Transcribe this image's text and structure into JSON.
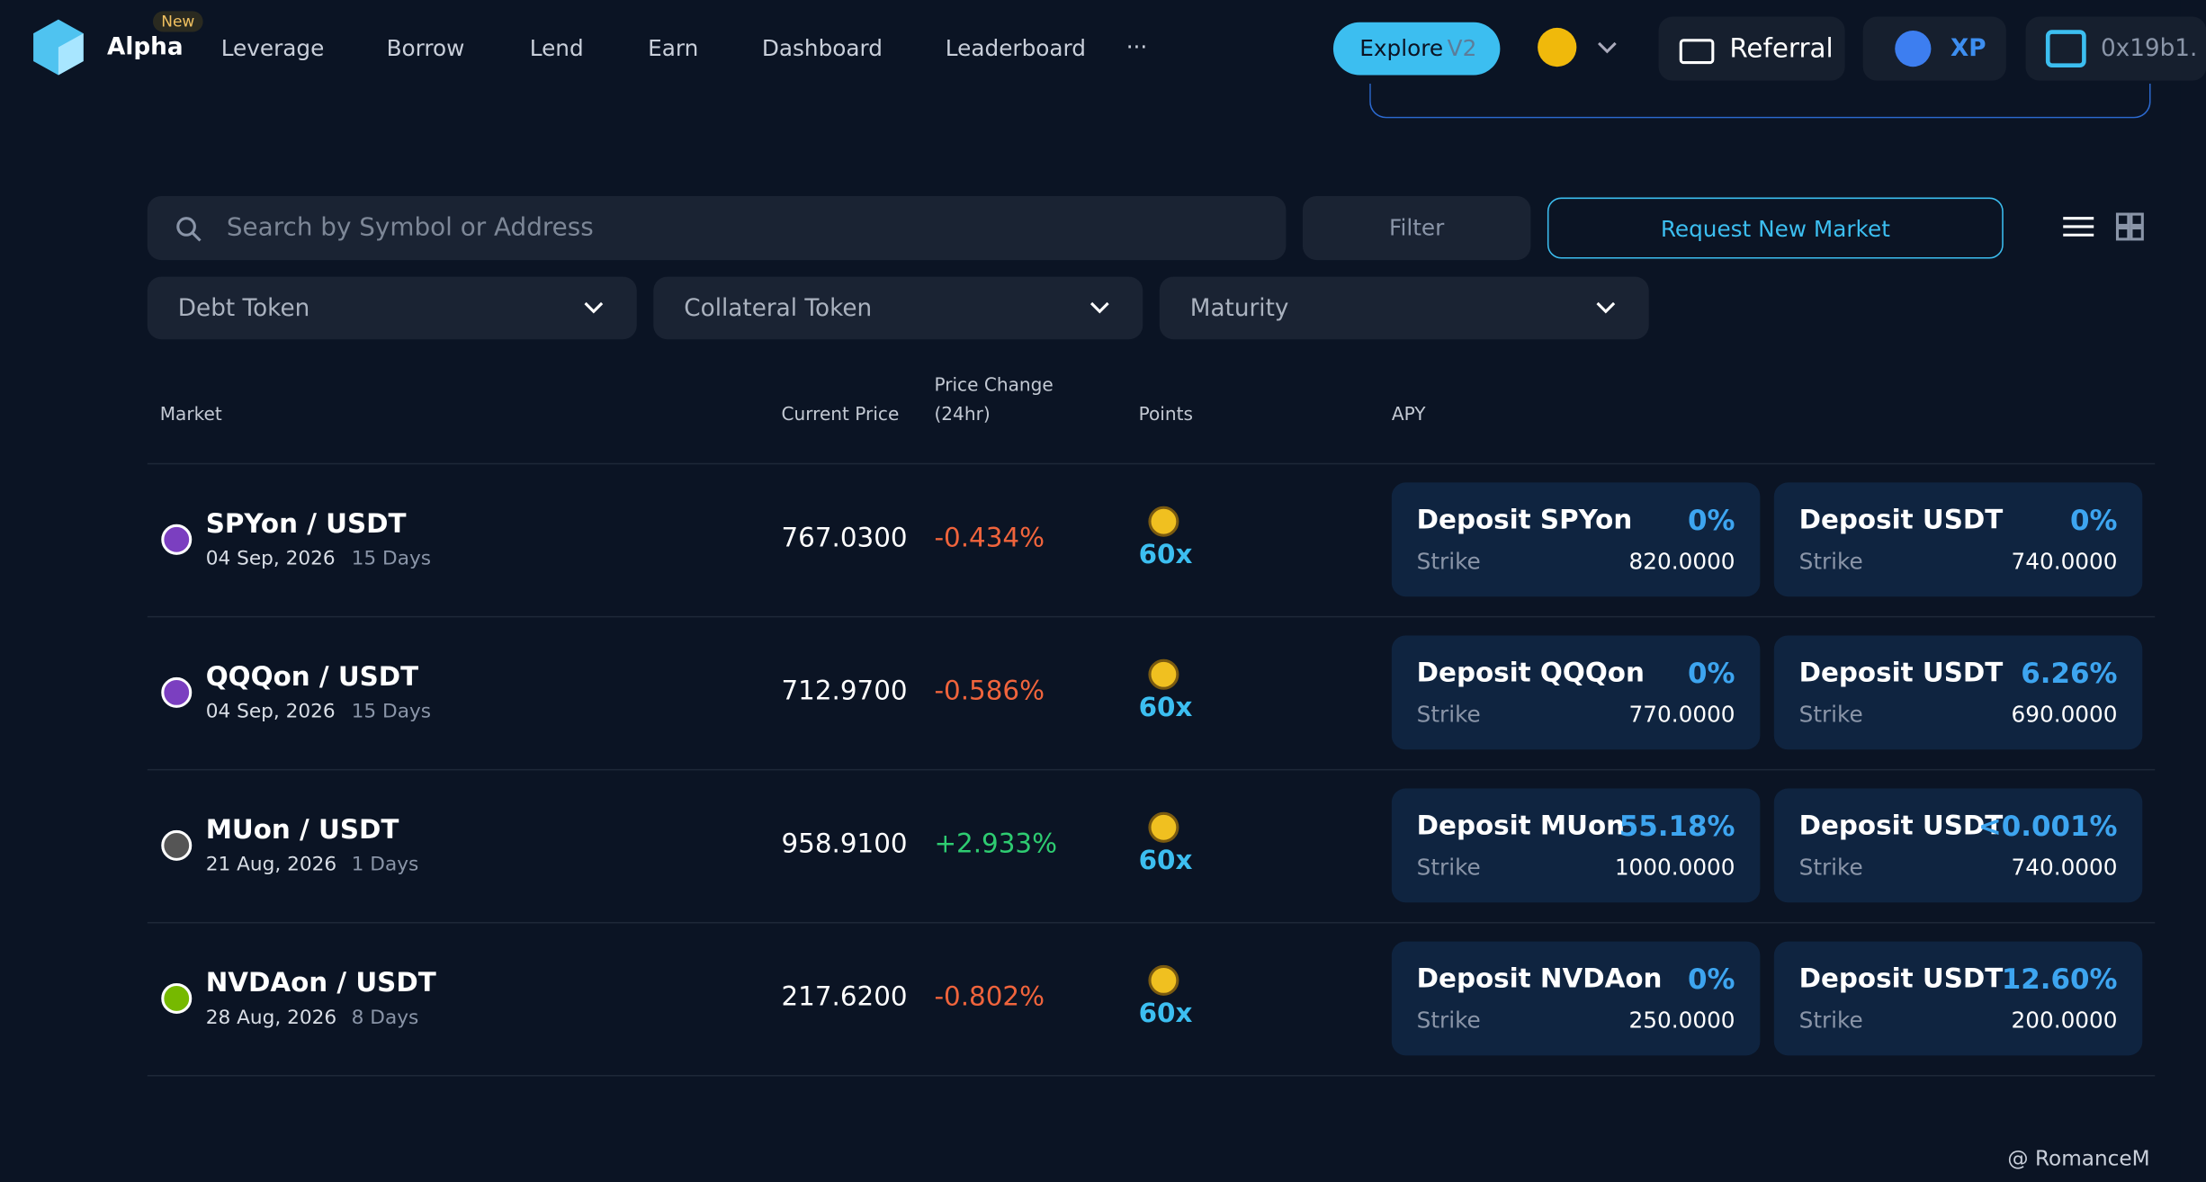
{
  "nav": {
    "brand": "Alpha",
    "badge": "New",
    "links": [
      "Leverage",
      "Borrow",
      "Lend",
      "Earn",
      "Dashboard",
      "Leaderboard"
    ],
    "more": "···",
    "explore": "Explore",
    "explore_version": "V2",
    "referral": "Referral",
    "xp": "XP",
    "wallet": "0x19b1."
  },
  "search": {
    "placeholder": "Search by Symbol or Address",
    "filter": "Filter",
    "request": "Request New Market"
  },
  "filters": [
    "Debt Token",
    "Collateral Token",
    "Maturity"
  ],
  "table": {
    "headers": {
      "market": "Market",
      "price": "Current Price",
      "change": "Price Change (24hr)",
      "points": "Points",
      "apy": "APY"
    },
    "rows": [
      {
        "market": "SPYon / USDT",
        "date": "04 Sep, 2026",
        "days": "15 Days",
        "price": "767.0300",
        "change": "-0.434%",
        "points": "60x",
        "deposits": [
          {
            "label": "Deposit SPYon",
            "apy": "0%",
            "strike_label": "Strike",
            "strike": "820.0000"
          },
          {
            "label": "Deposit USDT",
            "apy": "0%",
            "strike_label": "Strike",
            "strike": "740.0000"
          }
        ]
      },
      {
        "market": "QQQon / USDT",
        "date": "04 Sep, 2026",
        "days": "15 Days",
        "price": "712.9700",
        "change": "-0.586%",
        "points": "60x",
        "deposits": [
          {
            "label": "Deposit QQQon",
            "apy": "0%",
            "strike_label": "Strike",
            "strike": "770.0000"
          },
          {
            "label": "Deposit USDT",
            "apy": "6.26%",
            "strike_label": "Strike",
            "strike": "690.0000"
          }
        ]
      },
      {
        "market": "MUon / USDT",
        "date": "21 Aug, 2026",
        "days": "1 Days",
        "price": "958.9100",
        "change": "+2.933%",
        "points": "60x",
        "deposits": [
          {
            "label": "Deposit MUon",
            "apy": "55.18%",
            "strike_label": "Strike",
            "strike": "1000.0000"
          },
          {
            "label": "Deposit USDT",
            "apy": "<0.001%",
            "strike_label": "Strike",
            "strike": "740.0000"
          }
        ]
      },
      {
        "market": "NVDAon / USDT",
        "date": "28 Aug, 2026",
        "days": "8 Days",
        "price": "217.6200",
        "change": "-0.802%",
        "points": "60x",
        "deposits": [
          {
            "label": "Deposit NVDAon",
            "apy": "0%",
            "strike_label": "Strike",
            "strike": "250.0000"
          },
          {
            "label": "Deposit USDT",
            "apy": "12.60%",
            "strike_label": "Strike",
            "strike": "200.0000"
          }
        ]
      }
    ]
  },
  "watermark": "@ RomanceM"
}
